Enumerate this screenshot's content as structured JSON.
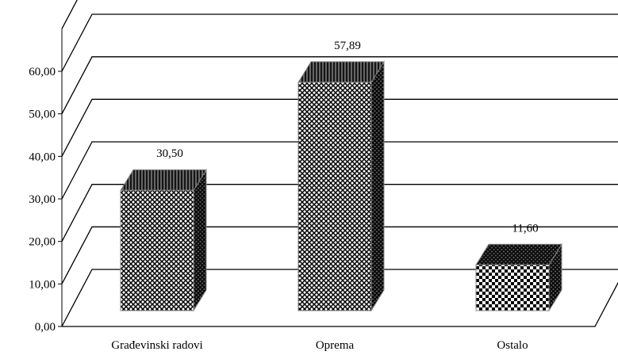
{
  "chart_data": {
    "type": "bar",
    "style": "3d-column",
    "categories": [
      "Građevinski radovi",
      "Oprema",
      "Ostalo"
    ],
    "values": [
      30.5,
      57.89,
      11.6
    ],
    "data_labels": [
      "30,50",
      "57,89",
      "11,60"
    ],
    "ylim": [
      0,
      60
    ],
    "yticks": [
      "0,00",
      "10,00",
      "20,00",
      "30,00",
      "40,00",
      "50,00",
      "60,00"
    ],
    "grid": true,
    "legend": "none",
    "fills": [
      "crosshatch",
      "crosshatch",
      "checker"
    ],
    "colors": {
      "mark": "#000000",
      "background": "#ffffff"
    }
  }
}
